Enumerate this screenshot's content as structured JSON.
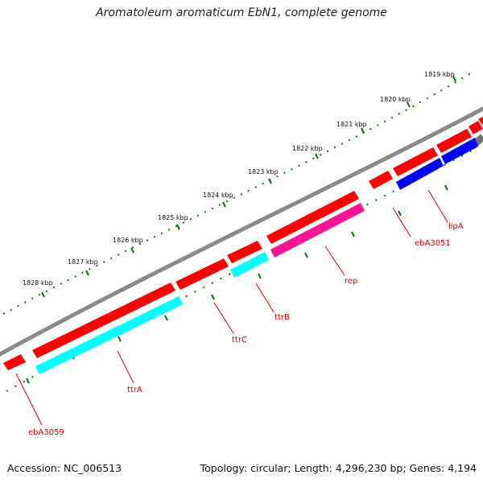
{
  "header": {
    "title": "Aromatoleum aromaticum EbN1, complete genome"
  },
  "footer": {
    "accession": "Accession: NC_006513",
    "summary": "Topology: circular; Length: 4,296,230 bp; Genes: 4,194"
  },
  "scale": {
    "tick_labels": [
      "1819 kbp",
      "1820 kbp",
      "1821 kbp",
      "1822 kbp",
      "1823 kbp",
      "1824 kbp",
      "1825 kbp",
      "1826 kbp",
      "1827 kbp",
      "1828 kbp"
    ]
  },
  "genes": [
    {
      "name": "ebA3059",
      "color": "#ff0000"
    },
    {
      "name": "ttrA",
      "color": "#00ffff"
    },
    {
      "name": "ttrC",
      "color": "#ff0000"
    },
    {
      "name": "ttrB",
      "color": "#00ffff"
    },
    {
      "name": "rep",
      "color": "#ff1493"
    },
    {
      "name": "ebA3051",
      "color": "#ff0000"
    },
    {
      "name": "lipA",
      "color": "#0000ff"
    }
  ],
  "colors": {
    "backbone": "#808080",
    "forward_feature": "#ff0000",
    "tick_marks": "#007a00",
    "label_text": "#d10000"
  }
}
